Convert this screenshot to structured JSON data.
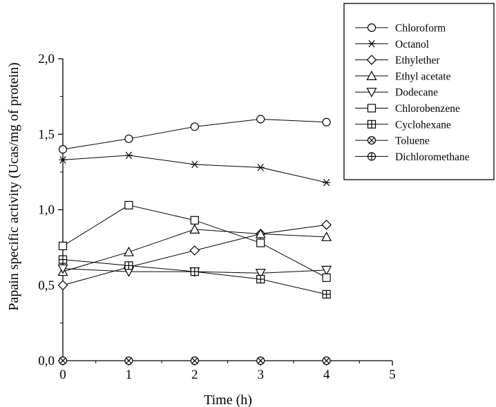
{
  "chart_data": {
    "type": "line",
    "title": "",
    "xlabel": "Time (h)",
    "ylabel": "Papain specific activity (Ucas/mg of protein)",
    "xlim": [
      0,
      5
    ],
    "ylim": [
      0,
      2.0
    ],
    "xticks": [
      "0",
      "1",
      "2",
      "3",
      "4",
      "5"
    ],
    "yticks": [
      "0,0",
      "0,5",
      "1,0",
      "1,5",
      "2,0"
    ],
    "grid": false,
    "legend_position": "top-right outside",
    "x": [
      0,
      1,
      2,
      3,
      4
    ],
    "series": [
      {
        "name": "Chloroform",
        "marker": "circle",
        "values": [
          1.4,
          1.47,
          1.55,
          1.6,
          1.58
        ]
      },
      {
        "name": "Octanol",
        "marker": "asterisk",
        "values": [
          1.33,
          1.36,
          1.3,
          1.28,
          1.18
        ]
      },
      {
        "name": "Ethylether",
        "marker": "diamond",
        "values": [
          0.5,
          0.62,
          0.73,
          0.84,
          0.9
        ]
      },
      {
        "name": "Ethyl acetate",
        "marker": "triangle-up",
        "values": [
          0.59,
          0.72,
          0.87,
          0.84,
          0.82
        ]
      },
      {
        "name": "Dodecane",
        "marker": "triangle-down",
        "values": [
          0.61,
          0.59,
          0.59,
          0.58,
          0.6
        ]
      },
      {
        "name": "Chlorobenzene",
        "marker": "square",
        "values": [
          0.76,
          1.03,
          0.93,
          0.78,
          0.55
        ]
      },
      {
        "name": "Cyclohexane",
        "marker": "square-plus",
        "values": [
          0.67,
          0.63,
          0.59,
          0.54,
          0.44
        ]
      },
      {
        "name": "Toluene",
        "marker": "circle-x",
        "values": [
          0,
          0,
          0,
          0,
          0
        ]
      },
      {
        "name": "Dichloromethane",
        "marker": "circle-plus",
        "values": [
          null,
          null,
          null,
          null,
          null
        ]
      }
    ]
  }
}
